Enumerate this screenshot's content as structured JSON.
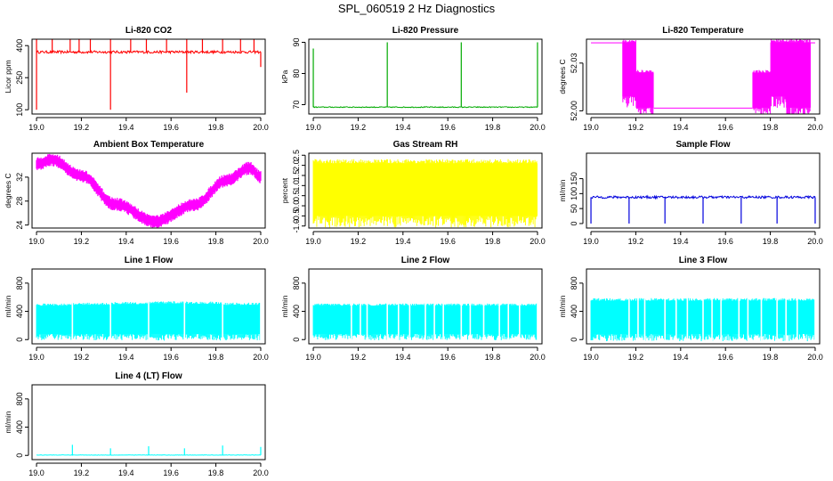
{
  "figure": {
    "title": "SPL_060519  2 Hz Diagnostics"
  },
  "chart_data": [
    {
      "type": "line",
      "title": "Li-820 CO2",
      "ylabel": "Licor ppm",
      "color": "#ff0000",
      "xlim": [
        18.98,
        20.02
      ],
      "ylim": [
        80,
        430
      ],
      "x_ticks": [
        "19.0",
        "19.2",
        "19.4",
        "19.6",
        "19.8",
        "20.0"
      ],
      "y_ticks": [
        "100",
        "250",
        "400"
      ],
      "baseline": 370,
      "noise": 6,
      "spikes": [
        [
          19.0,
          430
        ],
        [
          19.0,
          100
        ],
        [
          19.07,
          430
        ],
        [
          19.15,
          430
        ],
        [
          19.19,
          430
        ],
        [
          19.24,
          430
        ],
        [
          19.33,
          430
        ],
        [
          19.33,
          100
        ],
        [
          19.42,
          430
        ],
        [
          19.49,
          430
        ],
        [
          19.58,
          430
        ],
        [
          19.67,
          430
        ],
        [
          19.67,
          180
        ],
        [
          19.74,
          430
        ],
        [
          19.83,
          430
        ],
        [
          19.91,
          430
        ],
        [
          19.97,
          430
        ],
        [
          20.0,
          300
        ]
      ]
    },
    {
      "type": "line",
      "title": "Li-820 Pressure",
      "ylabel": "kPa",
      "color": "#00aa00",
      "xlim": [
        18.98,
        20.02
      ],
      "ylim": [
        67,
        91
      ],
      "x_ticks": [
        "19.0",
        "19.2",
        "19.4",
        "19.6",
        "19.8",
        "20.0"
      ],
      "y_ticks": [
        "70",
        "80",
        "90"
      ],
      "baseline": 69.2,
      "noise": 0.15,
      "spikes": [
        [
          19.0,
          88
        ],
        [
          19.33,
          90
        ],
        [
          19.66,
          90
        ],
        [
          20.0,
          90
        ]
      ]
    },
    {
      "type": "band",
      "title": "Li-820 Temperature",
      "ylabel": "degrees C",
      "color": "#ff00ff",
      "xlim": [
        18.98,
        20.02
      ],
      "ylim": [
        51.998,
        52.045
      ],
      "x_ticks": [
        "19.0",
        "19.2",
        "19.4",
        "19.6",
        "19.8",
        "20.0"
      ],
      "y_ticks": [
        "52.00",
        "52.03"
      ],
      "segments": [
        [
          19.0,
          19.14,
          52.043,
          52.043
        ],
        [
          19.14,
          19.2,
          52.009,
          52.043
        ],
        [
          19.2,
          19.28,
          52.002,
          52.024
        ],
        [
          19.28,
          19.72,
          52.002,
          52.002
        ],
        [
          19.72,
          19.8,
          52.002,
          52.024
        ],
        [
          19.8,
          19.87,
          52.009,
          52.043
        ],
        [
          19.87,
          19.98,
          52.002,
          52.043
        ],
        [
          19.98,
          20.0,
          52.043,
          52.043
        ]
      ]
    },
    {
      "type": "wave",
      "title": "Ambient Box Temperature",
      "ylabel": "degrees C",
      "color": "#ff00ff",
      "xlim": [
        18.98,
        20.02
      ],
      "ylim": [
        23.5,
        36
      ],
      "x_ticks": [
        "19.0",
        "19.2",
        "19.4",
        "19.6",
        "19.8",
        "20.0"
      ],
      "y_ticks": [
        "24",
        "28",
        "32"
      ],
      "knots": [
        [
          19.0,
          34.2
        ],
        [
          19.07,
          34.9
        ],
        [
          19.2,
          32.2
        ],
        [
          19.35,
          27.5
        ],
        [
          19.53,
          24.6
        ],
        [
          19.7,
          27.3
        ],
        [
          19.85,
          31.5
        ],
        [
          19.95,
          33.5
        ],
        [
          20.0,
          32.0
        ]
      ],
      "band": 0.6
    },
    {
      "type": "band",
      "title": "Gas Stream RH",
      "ylabel": "percent",
      "color": "#ffff00",
      "xlim": [
        18.98,
        20.02
      ],
      "ylim": [
        -1.1,
        2.6
      ],
      "x_ticks": [
        "19.0",
        "19.2",
        "19.4",
        "19.6",
        "19.8",
        "20.0"
      ],
      "y_ticks": [
        "-1.0",
        "-0.5",
        "0.0",
        "0.5",
        "1.0",
        "1.5",
        "2.0",
        "2.5"
      ],
      "segments": [
        [
          19.0,
          20.0,
          -0.5,
          2.1
        ]
      ]
    },
    {
      "type": "line",
      "title": "Sample Flow",
      "ylabel": "ml/min",
      "color": "#0000dd",
      "xlim": [
        18.98,
        20.02
      ],
      "ylim": [
        -15,
        235
      ],
      "x_ticks": [
        "19.0",
        "19.2",
        "19.4",
        "19.6",
        "19.8",
        "20.0"
      ],
      "y_ticks": [
        "0",
        "50",
        "100",
        "150"
      ],
      "baseline": 88,
      "noise": 4,
      "spikes": [
        [
          19.0,
          0
        ],
        [
          19.17,
          0
        ],
        [
          19.33,
          0
        ],
        [
          19.5,
          0
        ],
        [
          19.67,
          0
        ],
        [
          19.83,
          0
        ],
        [
          20.0,
          0
        ]
      ]
    },
    {
      "type": "band",
      "title": "Line 1 Flow",
      "ylabel": "ml/min",
      "color": "#00ffff",
      "xlim": [
        18.98,
        20.02
      ],
      "ylim": [
        -60,
        1000
      ],
      "x_ticks": [
        "19.0",
        "19.2",
        "19.4",
        "19.6",
        "19.8",
        "20.0"
      ],
      "y_ticks": [
        "0",
        "400",
        "800"
      ],
      "segments": [
        [
          19.0,
          19.16,
          80,
          480
        ],
        [
          19.16,
          19.33,
          80,
          490
        ],
        [
          19.33,
          19.5,
          80,
          500
        ],
        [
          19.5,
          19.66,
          80,
          510
        ],
        [
          19.66,
          19.83,
          80,
          505
        ],
        [
          19.83,
          20.0,
          80,
          490
        ]
      ],
      "gaps": [
        19.16,
        19.33,
        19.5,
        19.66,
        19.83,
        20.0
      ]
    },
    {
      "type": "band",
      "title": "Line 2 Flow",
      "ylabel": "ml/min",
      "color": "#00ffff",
      "xlim": [
        18.98,
        20.02
      ],
      "ylim": [
        -60,
        1000
      ],
      "x_ticks": [
        "19.0",
        "19.2",
        "19.4",
        "19.6",
        "19.8",
        "20.0"
      ],
      "y_ticks": [
        "0",
        "400",
        "800"
      ],
      "segments": [
        [
          19.0,
          20.0,
          80,
          480
        ]
      ],
      "gaps": [
        19.17,
        19.33,
        19.5,
        19.66,
        19.83,
        19.21,
        19.24,
        19.38,
        19.43,
        19.54,
        19.58,
        19.7,
        19.76,
        19.87,
        19.92,
        20.0
      ]
    },
    {
      "type": "band",
      "title": "Line 3 Flow",
      "ylabel": "ml/min",
      "color": "#00ffff",
      "xlim": [
        18.98,
        20.02
      ],
      "ylim": [
        -60,
        1000
      ],
      "x_ticks": [
        "19.0",
        "19.2",
        "19.4",
        "19.6",
        "19.8",
        "20.0"
      ],
      "y_ticks": [
        "0",
        "400",
        "800"
      ],
      "segments": [
        [
          19.0,
          20.0,
          80,
          550
        ]
      ],
      "gaps": [
        19.17,
        19.33,
        19.5,
        19.66,
        19.83,
        19.21,
        19.24,
        19.38,
        19.43,
        19.54,
        19.58,
        19.7,
        19.76,
        19.87,
        19.92,
        20.0
      ]
    },
    {
      "type": "line",
      "title": "Line 4 (LT) Flow",
      "ylabel": "ml/min",
      "color": "#00ffff",
      "xlim": [
        18.98,
        20.02
      ],
      "ylim": [
        -60,
        1000
      ],
      "x_ticks": [
        "19.0",
        "19.2",
        "19.4",
        "19.6",
        "19.8",
        "20.0"
      ],
      "y_ticks": [
        "0",
        "400",
        "800"
      ],
      "baseline": 5,
      "noise": 3,
      "spikes": [
        [
          19.16,
          150
        ],
        [
          19.33,
          100
        ],
        [
          19.5,
          130
        ],
        [
          19.66,
          100
        ],
        [
          19.83,
          140
        ],
        [
          20.0,
          120
        ]
      ]
    }
  ]
}
